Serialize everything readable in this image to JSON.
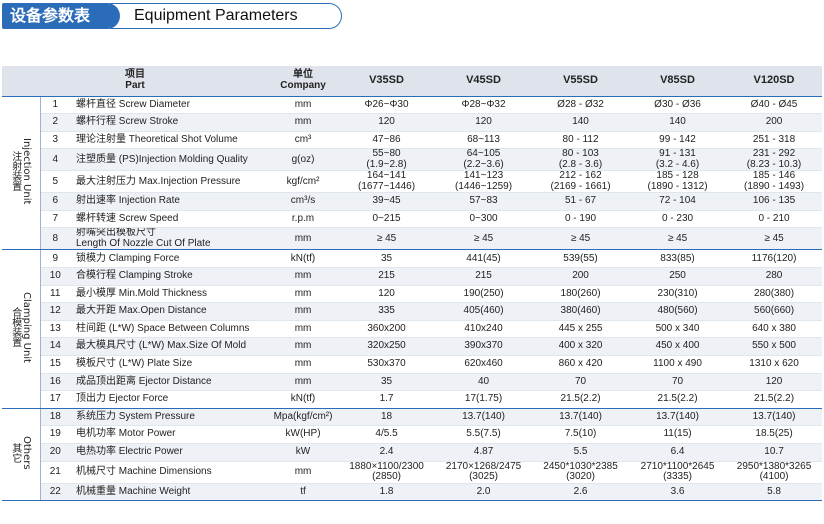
{
  "title": {
    "cn": "设备参数表",
    "en": "Equipment Parameters"
  },
  "header": {
    "item_cn": "项目",
    "item_en": "Part",
    "unit_cn": "单位",
    "unit_en": "Company",
    "models": [
      "V35SD",
      "V45SD",
      "V55SD",
      "V85SD",
      "V120SD"
    ]
  },
  "groups": [
    {
      "label_en": "Injection Unit",
      "label_cn": "注射装置"
    },
    {
      "label_en": "Clamping Unit",
      "label_cn": "合模装置"
    },
    {
      "label_en": "Others",
      "label_cn": "其它"
    }
  ],
  "rows": [
    {
      "no": "1",
      "item": "螺杆直径 Screw Diameter",
      "unit": "mm",
      "values": [
        [
          "Φ26~Φ30"
        ],
        [
          "Φ28~Φ32"
        ],
        [
          "Ø28 - Ø32"
        ],
        [
          "Ø30 - Ø36"
        ],
        [
          "Ø40 - Ø45"
        ]
      ]
    },
    {
      "no": "2",
      "item": "螺杆行程 Screw Stroke",
      "unit": "mm",
      "values": [
        [
          "120"
        ],
        [
          "120"
        ],
        [
          "140"
        ],
        [
          "140"
        ],
        [
          "200"
        ]
      ]
    },
    {
      "no": "3",
      "item": "理论注射量 Theoretical Shot Volume",
      "unit": "cm³",
      "values": [
        [
          "47~86"
        ],
        [
          "68~113"
        ],
        [
          "80 - 112"
        ],
        [
          "99 - 142"
        ],
        [
          "251 - 318"
        ]
      ]
    },
    {
      "no": "4",
      "item": "注塑质量 (PS)Injection Molding Quality",
      "unit": "g(oz)",
      "values": [
        [
          "55~80",
          "(1.9~2.8)"
        ],
        [
          "64~105",
          "(2.2~3.6)"
        ],
        [
          "80 - 103",
          "(2.8 - 3.6)"
        ],
        [
          "91 - 131",
          "(3.2 - 4.6)"
        ],
        [
          "231 - 292",
          "(8.23 - 10.3)"
        ]
      ]
    },
    {
      "no": "5",
      "item": "最大注射压力 Max.Injection Pressure",
      "unit": "kgf/cm²",
      "values": [
        [
          "164~141",
          "(1677~1446)"
        ],
        [
          "141~123",
          "(1446~1259)"
        ],
        [
          "212 - 162",
          "(2169 - 1661)"
        ],
        [
          "185 - 128",
          "(1890 - 1312)"
        ],
        [
          "185 - 146",
          "(1890 - 1493)"
        ]
      ]
    },
    {
      "no": "6",
      "item": "射出速率 Injection Rate",
      "unit": "cm³/s",
      "values": [
        [
          "39~45"
        ],
        [
          "57~83"
        ],
        [
          "51 - 67"
        ],
        [
          "72 - 104"
        ],
        [
          "106 - 135"
        ]
      ]
    },
    {
      "no": "7",
      "item": "螺杆转速 Screw Speed",
      "unit": "r.p.m",
      "values": [
        [
          "0~215"
        ],
        [
          "0~300"
        ],
        [
          "0 - 190"
        ],
        [
          "0 - 230"
        ],
        [
          "0 - 210"
        ]
      ]
    },
    {
      "no": "8",
      "item": [
        "射嘴突出模板尺寸",
        "Length Of Nozzle Cut Of Plate"
      ],
      "unit": "mm",
      "values": [
        [
          "≥ 45"
        ],
        [
          "≥ 45"
        ],
        [
          "≥ 45"
        ],
        [
          "≥ 45"
        ],
        [
          "≥ 45"
        ]
      ]
    },
    {
      "no": "9",
      "item": "锁模力 Clamping Force",
      "unit": "kN(tf)",
      "values": [
        [
          "35"
        ],
        [
          "441(45)"
        ],
        [
          "539(55)"
        ],
        [
          "833(85)"
        ],
        [
          "1176(120)"
        ]
      ]
    },
    {
      "no": "10",
      "item": "合模行程 Clamping Stroke",
      "unit": "mm",
      "values": [
        [
          "215"
        ],
        [
          "215"
        ],
        [
          "200"
        ],
        [
          "250"
        ],
        [
          "280"
        ]
      ]
    },
    {
      "no": "11",
      "item": "最小模厚 Min.Mold Thickness",
      "unit": "mm",
      "values": [
        [
          "120"
        ],
        [
          "190(250)"
        ],
        [
          "180(260)"
        ],
        [
          "230(310)"
        ],
        [
          "280(380)"
        ]
      ]
    },
    {
      "no": "12",
      "item": "最大开距 Max.Open Distance",
      "unit": "mm",
      "values": [
        [
          "335"
        ],
        [
          "405(460)"
        ],
        [
          "380(460)"
        ],
        [
          "480(560)"
        ],
        [
          "560(660)"
        ]
      ]
    },
    {
      "no": "13",
      "item": "柱间距 (L*W) Space Between Columns",
      "unit": "mm",
      "values": [
        [
          "360x200"
        ],
        [
          "410x240"
        ],
        [
          "445 x 255"
        ],
        [
          "500 x 340"
        ],
        [
          "640 x 380"
        ]
      ]
    },
    {
      "no": "14",
      "item": "最大模具尺寸 (L*W) Max.Size Of Mold",
      "unit": "mm",
      "values": [
        [
          "320x250"
        ],
        [
          "390x370"
        ],
        [
          "400 x 320"
        ],
        [
          "450 x 400"
        ],
        [
          "550 x 500"
        ]
      ]
    },
    {
      "no": "15",
      "item": "模板尺寸 (L*W) Plate Size",
      "unit": "mm",
      "values": [
        [
          "530x370"
        ],
        [
          "620x460"
        ],
        [
          "860 x 420"
        ],
        [
          "1100 x 490"
        ],
        [
          "1310 x 620"
        ]
      ]
    },
    {
      "no": "16",
      "item": "成品顶出距离 Ejector Distance",
      "unit": "mm",
      "values": [
        [
          "35"
        ],
        [
          "40"
        ],
        [
          "70"
        ],
        [
          "70"
        ],
        [
          "120"
        ]
      ]
    },
    {
      "no": "17",
      "item": "顶出力 Ejector Force",
      "unit": "kN(tf)",
      "values": [
        [
          "1.7"
        ],
        [
          "17(1.75)"
        ],
        [
          "21.5(2.2)"
        ],
        [
          "21.5(2.2)"
        ],
        [
          "21.5(2.2)"
        ]
      ]
    },
    {
      "no": "18",
      "item": "系统压力 System Pressure",
      "unit": "Mpa(kgf/cm²)",
      "values": [
        [
          "18"
        ],
        [
          "13.7(140)"
        ],
        [
          "13.7(140)"
        ],
        [
          "13.7(140)"
        ],
        [
          "13.7(140)"
        ]
      ]
    },
    {
      "no": "19",
      "item": "电机功率 Motor Power",
      "unit": "kW(HP)",
      "values": [
        [
          "4/5.5"
        ],
        [
          "5.5(7.5)"
        ],
        [
          "7.5(10)"
        ],
        [
          "11(15)"
        ],
        [
          "18.5(25)"
        ]
      ]
    },
    {
      "no": "20",
      "item": "电热功率 Electric Power",
      "unit": "kW",
      "values": [
        [
          "2.4"
        ],
        [
          "4.87"
        ],
        [
          "5.5"
        ],
        [
          "6.4"
        ],
        [
          "10.7"
        ]
      ]
    },
    {
      "no": "21",
      "item": "机械尺寸 Machine Dimensions",
      "unit": "mm",
      "values": [
        [
          "1880×1100/2300",
          "(2850)"
        ],
        [
          "2170×1268/2475",
          "(3025)"
        ],
        [
          "2450*1030*2385",
          "(3020)"
        ],
        [
          "2710*1100*2645",
          "(3335)"
        ],
        [
          "2950*1380*3265",
          "(4100)"
        ]
      ]
    },
    {
      "no": "22",
      "item": "机械重量 Machine Weight",
      "unit": "tf",
      "values": [
        [
          "1.8"
        ],
        [
          "2.0"
        ],
        [
          "2.6"
        ],
        [
          "3.6"
        ],
        [
          "5.8"
        ]
      ]
    }
  ],
  "colors": {
    "accent": "#2b6cb8",
    "header_bg": "#dfe4ec",
    "row_shade": "#eef1f6"
  }
}
